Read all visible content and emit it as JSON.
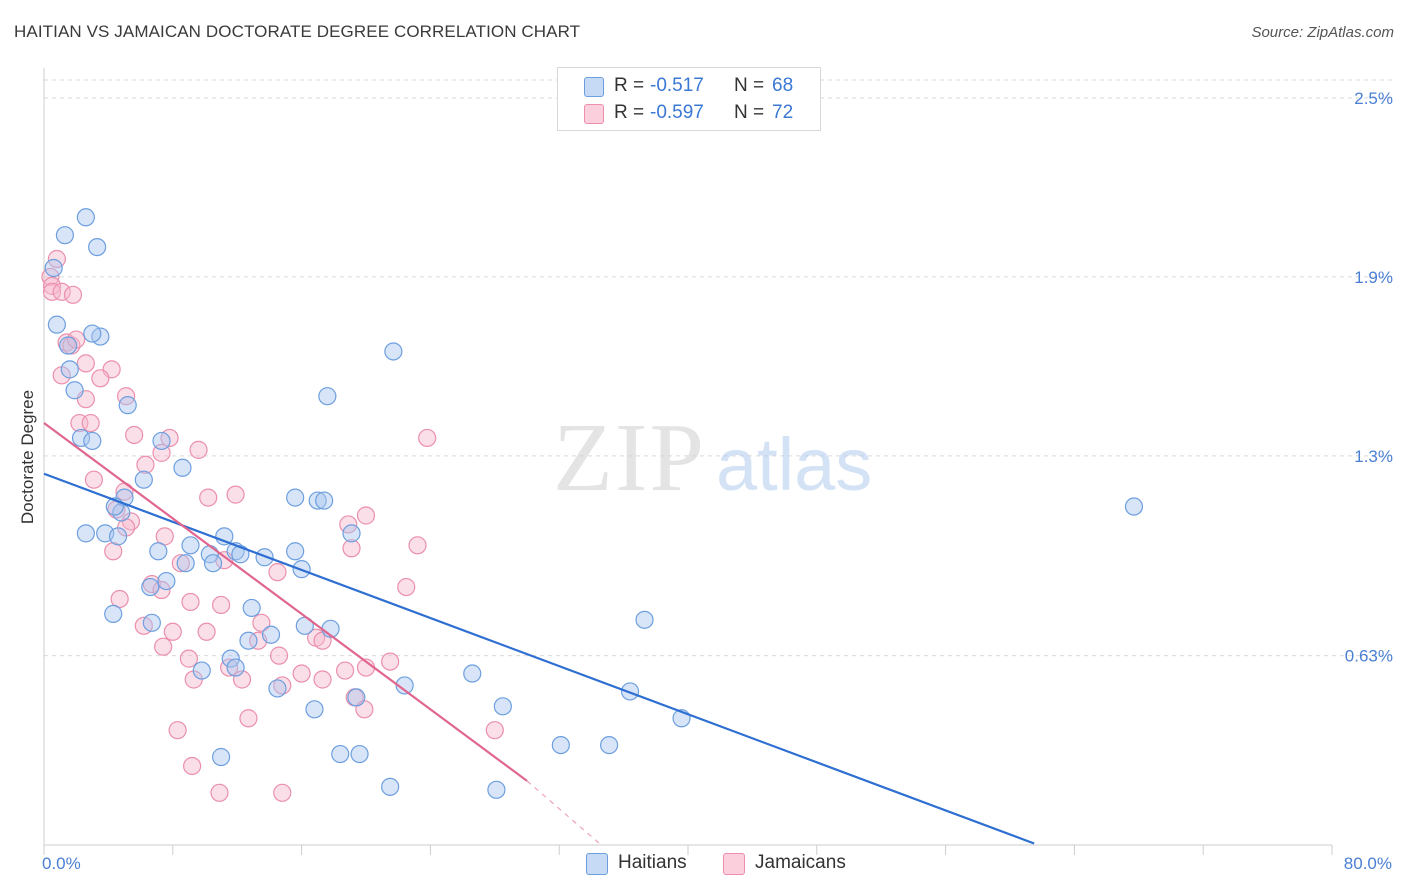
{
  "header": {
    "title": "HAITIAN VS JAMAICAN DOCTORATE DEGREE CORRELATION CHART",
    "source": "Source: ZipAtlas.com"
  },
  "watermark": {
    "zip": "ZIP",
    "atlas": "atlas"
  },
  "legend": {
    "haitians": {
      "r_label": "R =",
      "r_value": "-0.517",
      "n_label": "N =",
      "n_value": "68"
    },
    "jamaicans": {
      "r_label": "R =",
      "r_value": "-0.597",
      "n_label": "N =",
      "n_value": "72"
    }
  },
  "bottom_legend": {
    "haitians": "Haitians",
    "jamaicans": "Jamaicans"
  },
  "colors": {
    "haitians_fill": "#a8c6f0",
    "haitians_stroke": "#6d9fdf",
    "haitians_line": "#2f6fd1",
    "jamaicans_fill": "#f6b8cb",
    "jamaicans_stroke": "#eb8fac",
    "jamaicans_line": "#e0668f",
    "tick_label": "#4a7fd4",
    "grid": "#d9d9d9"
  },
  "chart_data": {
    "type": "scatter",
    "title": "HAITIAN VS JAMAICAN DOCTORATE DEGREE CORRELATION CHART",
    "xlabel": "",
    "ylabel": "Doctorate Degree",
    "xlim": [
      0,
      80
    ],
    "ylim": [
      0,
      2.7
    ],
    "x_tick_labels": [
      "0.0%",
      "80.0%"
    ],
    "y_ticks": [
      0.63,
      1.3,
      1.9,
      2.5
    ],
    "y_tick_labels": [
      "0.63%",
      "1.3%",
      "1.9%",
      "2.5%"
    ],
    "grid": true,
    "legend_position": "top-center",
    "series": [
      {
        "name": "Haitians",
        "r": -0.517,
        "n": 68,
        "trend": {
          "x": [
            0,
            61.5
          ],
          "y": [
            1.24,
            0.0
          ]
        },
        "points": [
          [
            0.6,
            1.93
          ],
          [
            1.3,
            2.04
          ],
          [
            3.3,
            2.0
          ],
          [
            0.8,
            1.74
          ],
          [
            1.5,
            1.67
          ],
          [
            3.5,
            1.7
          ],
          [
            1.6,
            1.59
          ],
          [
            1.9,
            1.52
          ],
          [
            5.2,
            1.47
          ],
          [
            2.3,
            1.36
          ],
          [
            3.0,
            1.35
          ],
          [
            7.3,
            1.35
          ],
          [
            8.6,
            1.26
          ],
          [
            6.2,
            1.22
          ],
          [
            5.0,
            1.16
          ],
          [
            4.8,
            1.11
          ],
          [
            2.6,
            1.04
          ],
          [
            3.8,
            1.04
          ],
          [
            4.6,
            1.03
          ],
          [
            11.2,
            1.03
          ],
          [
            7.1,
            0.98
          ],
          [
            8.8,
            0.94
          ],
          [
            7.6,
            0.88
          ],
          [
            6.6,
            0.86
          ],
          [
            11.9,
            0.98
          ],
          [
            9.1,
            1.0
          ],
          [
            10.3,
            0.97
          ],
          [
            12.2,
            0.97
          ],
          [
            13.7,
            0.96
          ],
          [
            15.6,
            0.98
          ],
          [
            15.6,
            1.16
          ],
          [
            17.0,
            1.15
          ],
          [
            17.4,
            1.15
          ],
          [
            19.1,
            1.04
          ],
          [
            16.0,
            0.92
          ],
          [
            6.7,
            0.74
          ],
          [
            4.3,
            0.77
          ],
          [
            10.5,
            0.94
          ],
          [
            12.9,
            0.79
          ],
          [
            14.1,
            0.7
          ],
          [
            12.7,
            0.68
          ],
          [
            16.2,
            0.73
          ],
          [
            17.8,
            0.72
          ],
          [
            9.8,
            0.58
          ],
          [
            11.6,
            0.62
          ],
          [
            11.9,
            0.59
          ],
          [
            14.5,
            0.52
          ],
          [
            16.8,
            0.45
          ],
          [
            19.4,
            0.49
          ],
          [
            22.4,
            0.53
          ],
          [
            26.6,
            0.57
          ],
          [
            28.5,
            0.46
          ],
          [
            21.7,
            1.65
          ],
          [
            17.6,
            1.5
          ],
          [
            32.1,
            0.33
          ],
          [
            35.1,
            0.33
          ],
          [
            37.3,
            0.75
          ],
          [
            36.4,
            0.51
          ],
          [
            39.6,
            0.42
          ],
          [
            11.0,
            0.29
          ],
          [
            18.4,
            0.3
          ],
          [
            19.6,
            0.3
          ],
          [
            21.5,
            0.19
          ],
          [
            28.1,
            0.18
          ],
          [
            67.7,
            1.13
          ],
          [
            4.4,
            1.13
          ],
          [
            2.6,
            2.1
          ],
          [
            3.0,
            1.71
          ]
        ]
      },
      {
        "name": "Jamaicans",
        "r": -0.597,
        "n": 72,
        "trend": {
          "x": [
            0,
            30.0
          ],
          "y": [
            1.41,
            0.21
          ]
        },
        "trend_extension": {
          "x": [
            30.0,
            34.5
          ],
          "y": [
            0.21,
            0.0
          ]
        },
        "points": [
          [
            0.4,
            1.9
          ],
          [
            0.8,
            1.96
          ],
          [
            0.5,
            1.87
          ],
          [
            0.5,
            1.85
          ],
          [
            1.1,
            1.85
          ],
          [
            1.8,
            1.84
          ],
          [
            1.4,
            1.68
          ],
          [
            1.7,
            1.67
          ],
          [
            2.0,
            1.69
          ],
          [
            2.6,
            1.61
          ],
          [
            4.2,
            1.59
          ],
          [
            1.1,
            1.57
          ],
          [
            3.5,
            1.56
          ],
          [
            2.6,
            1.49
          ],
          [
            5.1,
            1.5
          ],
          [
            2.2,
            1.41
          ],
          [
            2.9,
            1.41
          ],
          [
            5.6,
            1.37
          ],
          [
            7.8,
            1.36
          ],
          [
            9.6,
            1.32
          ],
          [
            7.3,
            1.31
          ],
          [
            6.3,
            1.27
          ],
          [
            3.1,
            1.22
          ],
          [
            5.0,
            1.18
          ],
          [
            10.2,
            1.16
          ],
          [
            11.9,
            1.17
          ],
          [
            5.4,
            1.08
          ],
          [
            5.1,
            1.06
          ],
          [
            4.5,
            1.12
          ],
          [
            7.5,
            1.03
          ],
          [
            4.3,
            0.98
          ],
          [
            8.5,
            0.94
          ],
          [
            11.2,
            0.95
          ],
          [
            14.5,
            0.91
          ],
          [
            6.7,
            0.87
          ],
          [
            4.7,
            0.82
          ],
          [
            7.3,
            0.85
          ],
          [
            9.1,
            0.81
          ],
          [
            11.0,
            0.8
          ],
          [
            13.5,
            0.74
          ],
          [
            6.2,
            0.73
          ],
          [
            8.0,
            0.71
          ],
          [
            10.1,
            0.71
          ],
          [
            13.3,
            0.68
          ],
          [
            16.9,
            0.69
          ],
          [
            17.3,
            0.68
          ],
          [
            19.1,
            0.99
          ],
          [
            18.9,
            1.07
          ],
          [
            20.0,
            1.1
          ],
          [
            23.2,
            1.0
          ],
          [
            22.5,
            0.86
          ],
          [
            28.0,
            0.38
          ],
          [
            7.4,
            0.66
          ],
          [
            9.0,
            0.62
          ],
          [
            11.5,
            0.59
          ],
          [
            14.6,
            0.63
          ],
          [
            16.0,
            0.57
          ],
          [
            18.7,
            0.58
          ],
          [
            20.0,
            0.59
          ],
          [
            21.5,
            0.61
          ],
          [
            9.3,
            0.55
          ],
          [
            12.3,
            0.55
          ],
          [
            14.8,
            0.53
          ],
          [
            17.3,
            0.55
          ],
          [
            19.3,
            0.49
          ],
          [
            19.9,
            0.45
          ],
          [
            8.3,
            0.38
          ],
          [
            12.7,
            0.42
          ],
          [
            9.2,
            0.26
          ],
          [
            10.9,
            0.17
          ],
          [
            14.8,
            0.17
          ],
          [
            23.8,
            1.36
          ]
        ]
      }
    ]
  }
}
